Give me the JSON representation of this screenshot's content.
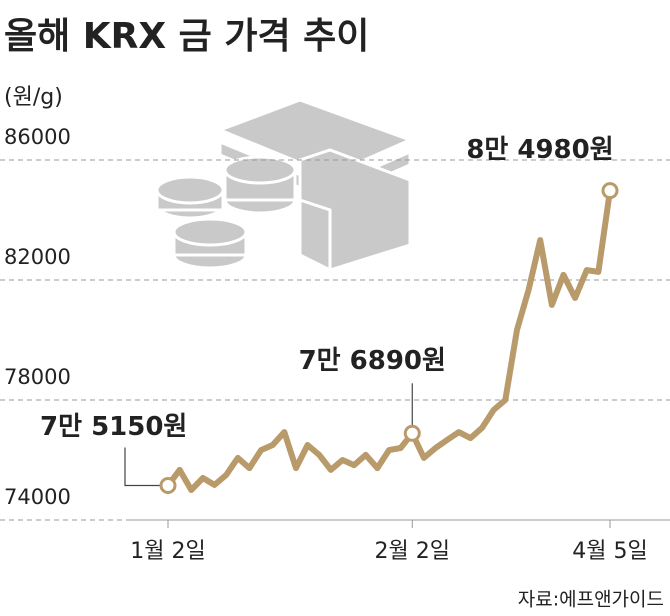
{
  "chart_data": {
    "type": "line",
    "title": "올해 KRX 금 가격 추이",
    "y_label": "(원/g)",
    "source": "자료:에프앤가이드",
    "categories": [
      "1월 2일",
      null,
      null,
      null,
      null,
      null,
      null,
      null,
      null,
      null,
      null,
      null,
      null,
      null,
      null,
      null,
      null,
      null,
      null,
      null,
      null,
      "2월 2일",
      null,
      null,
      null,
      null,
      null,
      null,
      null,
      null,
      null,
      null,
      null,
      null,
      null,
      null,
      null,
      null,
      "4월 5일"
    ],
    "series": [
      {
        "name": "KRX 금 가격",
        "color": "#b99a6b",
        "values": [
          75150,
          75670,
          75000,
          75400,
          75170,
          75500,
          76070,
          75730,
          76330,
          76500,
          76930,
          75730,
          76500,
          76170,
          75670,
          76000,
          75830,
          76170,
          75730,
          76330,
          76400,
          76890,
          76070,
          76400,
          76670,
          76930,
          76730,
          77070,
          77670,
          78000,
          80330,
          81670,
          83330,
          81170,
          82170,
          81400,
          82330,
          82270,
          84980
        ],
        "value_labels": [
          "7만 5150원",
          null,
          null,
          null,
          null,
          null,
          null,
          null,
          null,
          null,
          null,
          null,
          null,
          null,
          null,
          null,
          null,
          null,
          null,
          null,
          null,
          "7만 6890원",
          null,
          null,
          null,
          null,
          null,
          null,
          null,
          null,
          null,
          null,
          null,
          null,
          null,
          null,
          null,
          null,
          "8만 4980원"
        ]
      }
    ],
    "ylim": [
      74000,
      86000
    ],
    "yticks": [
      74000,
      78000,
      82000,
      86000
    ],
    "grid": true
  }
}
